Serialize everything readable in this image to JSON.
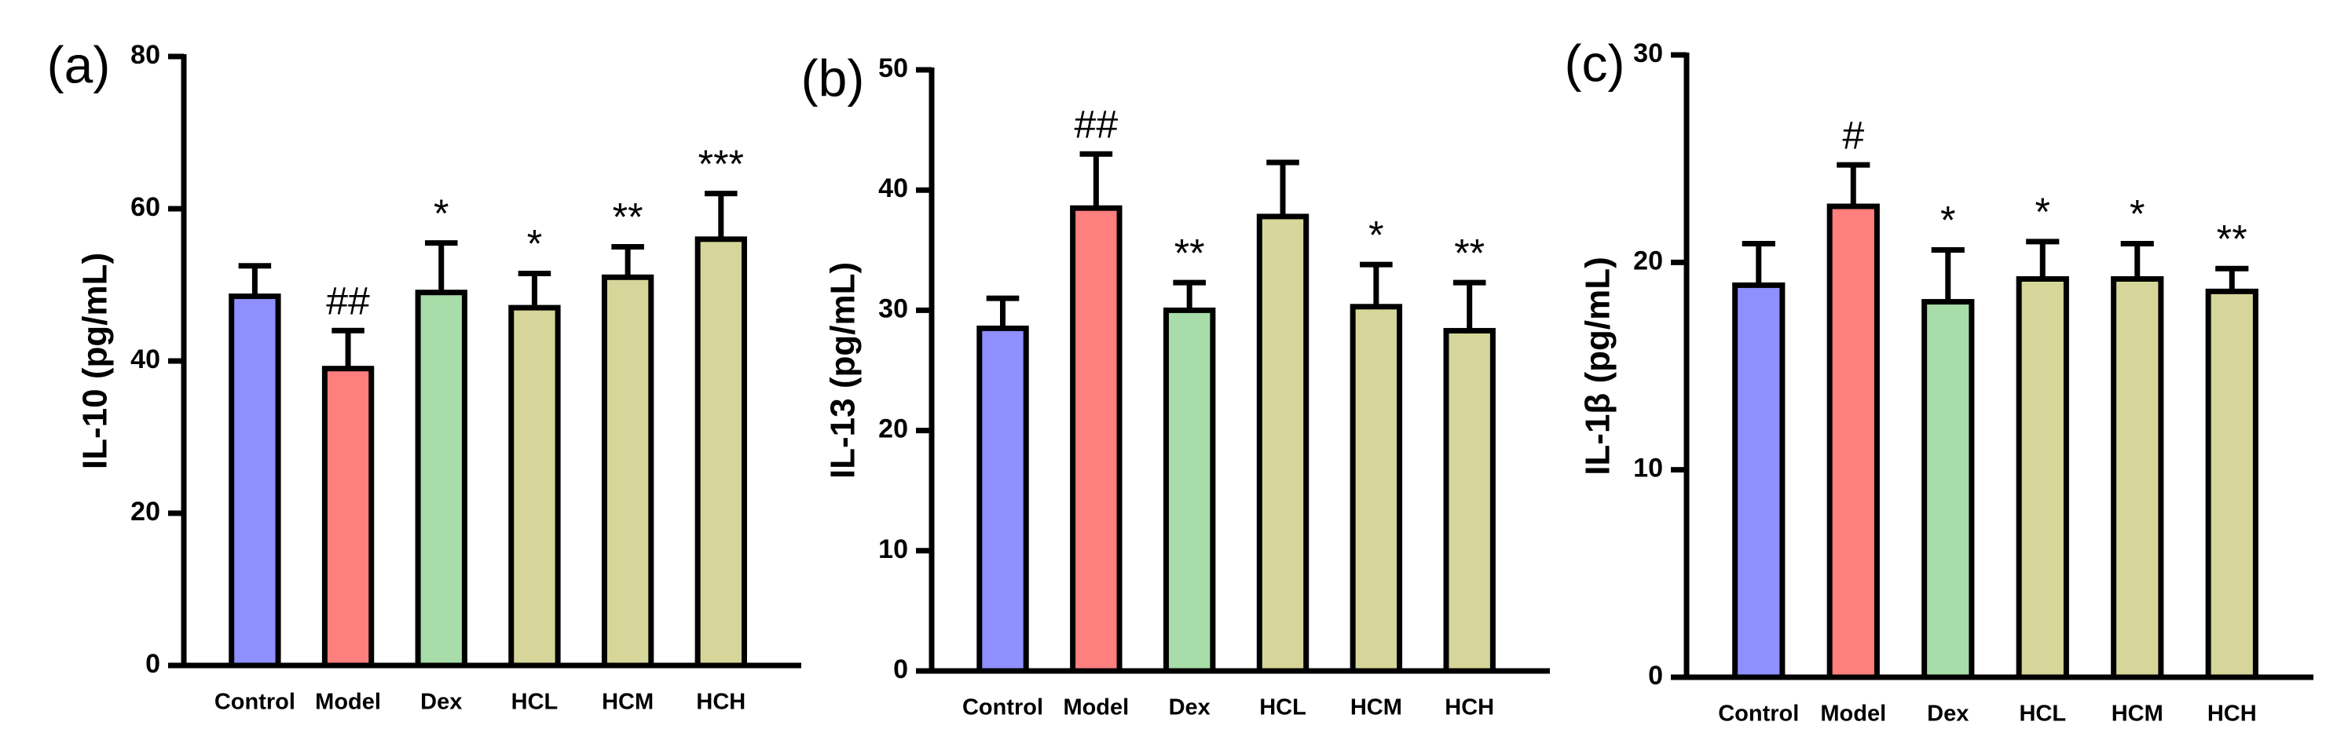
{
  "chart_data": [
    {
      "type": "bar",
      "panel_label": "(a)",
      "ylabel": "IL-10 (pg/mL)",
      "categories": [
        "Control",
        "Model",
        "Dex",
        "HCL",
        "HCM",
        "HCH"
      ],
      "values": [
        48.5,
        39,
        49,
        47,
        51,
        56
      ],
      "errors": [
        4,
        5,
        6.5,
        4.5,
        4,
        6
      ],
      "colors": [
        "#8f8fff",
        "#ff7f7f",
        "#a8dca8",
        "#d6d69a",
        "#d6d69a",
        "#d6d69a"
      ],
      "annotations": [
        null,
        "##",
        "*",
        "*",
        "**",
        "***"
      ],
      "ylim": [
        0,
        80
      ],
      "yticks": [
        0,
        20,
        40,
        60,
        80
      ]
    },
    {
      "type": "bar",
      "panel_label": "(b)",
      "ylabel": "IL-13 (pg/mL)",
      "categories": [
        "Control",
        "Model",
        "Dex",
        "HCL",
        "HCM",
        "HCH"
      ],
      "values": [
        28.5,
        38.5,
        30,
        37.8,
        30.3,
        28.3
      ],
      "errors": [
        2.5,
        4.5,
        2.3,
        4.5,
        3.5,
        4
      ],
      "colors": [
        "#8f8fff",
        "#ff7f7f",
        "#a8dca8",
        "#d6d69a",
        "#d6d69a",
        "#d6d69a"
      ],
      "annotations": [
        null,
        "##",
        "**",
        null,
        "*",
        "**"
      ],
      "ylim": [
        0,
        50
      ],
      "yticks": [
        0,
        10,
        20,
        30,
        40,
        50
      ]
    },
    {
      "type": "bar",
      "panel_label": "(c)",
      "ylabel": "IL-1β (pg/mL)",
      "categories": [
        "Control",
        "Model",
        "Dex",
        "HCL",
        "HCM",
        "HCH"
      ],
      "values": [
        18.9,
        22.7,
        18.1,
        19.2,
        19.2,
        18.6
      ],
      "errors": [
        2,
        2,
        2.5,
        1.8,
        1.7,
        1.1
      ],
      "colors": [
        "#8f8fff",
        "#ff7f7f",
        "#a8dca8",
        "#d6d69a",
        "#d6d69a",
        "#d6d69a"
      ],
      "annotations": [
        null,
        "#",
        "*",
        "*",
        "*",
        "**"
      ],
      "ylim": [
        0,
        30
      ],
      "yticks": [
        0,
        10,
        20,
        30
      ]
    }
  ]
}
